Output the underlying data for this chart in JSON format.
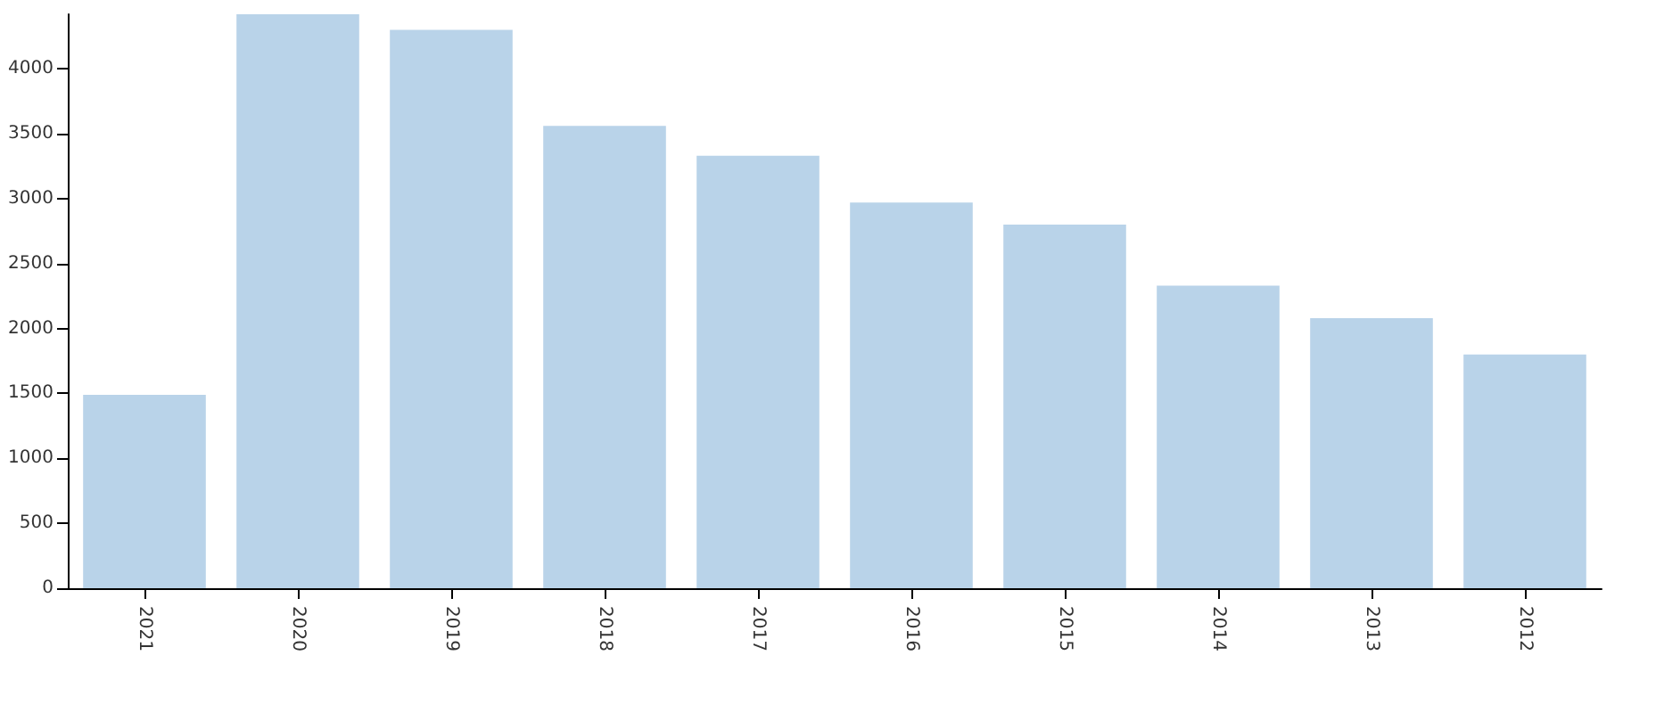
{
  "chart_data": {
    "type": "bar",
    "categories": [
      "2021",
      "2020",
      "2019",
      "2018",
      "2017",
      "2016",
      "2015",
      "2014",
      "2013",
      "2012"
    ],
    "values": [
      1490,
      4420,
      4300,
      3560,
      3330,
      2970,
      2800,
      2330,
      2080,
      1800
    ],
    "color": "#b9d3e9",
    "ylim": [
      0,
      4420
    ],
    "yticks": [
      0,
      500,
      1000,
      1500,
      2000,
      2500,
      3000,
      3500,
      4000
    ],
    "grid": false
  }
}
